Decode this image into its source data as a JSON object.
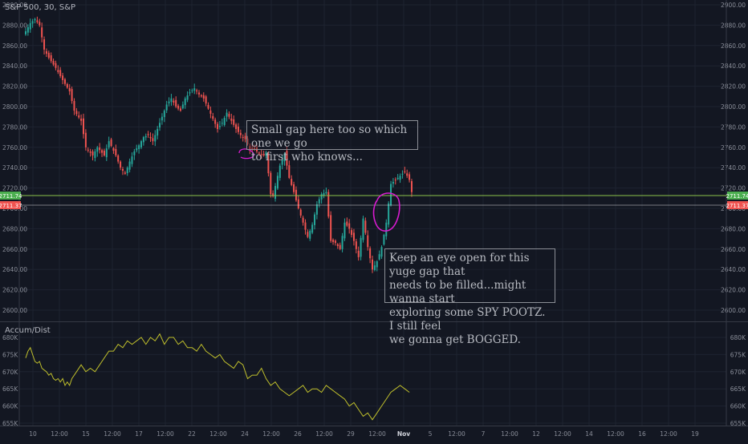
{
  "chart": {
    "title": "S&P 500, 30, S&P",
    "indicator_title": "Accum/Dist",
    "theme": {
      "background": "#131722",
      "grid": "#1e2330",
      "text": "#b2b5be",
      "up": "#26a69a",
      "down": "#ef5350",
      "ad_line": "#bfbf2c",
      "level_green": "#8bc34a",
      "annotation_circle": "#d81bd0"
    }
  },
  "annotations": [
    {
      "text": "Small gap here too so which one we go\nto first who knows..."
    },
    {
      "text": "Keep an eye open for this yuge gap that\nneeds to be filled...might wanna start\nexploring some SPY POOTZ. I still feel\nwe gonna get BOGGED."
    }
  ],
  "price_labels": [
    {
      "value": "2711.74",
      "color": "#4caf50"
    },
    {
      "value": "2711.37",
      "color": "#ef5350"
    }
  ],
  "chart_data": [
    {
      "type": "candlestick",
      "title": "S&P 500, 30, S&P",
      "y_ticks": [
        "2600.00",
        "2620.00",
        "2640.00",
        "2660.00",
        "2680.00",
        "2700.00",
        "2720.00",
        "2740.00",
        "2760.00",
        "2780.00",
        "2800.00",
        "2820.00",
        "2840.00",
        "2860.00",
        "2880.00",
        "2900.00"
      ],
      "ylim": [
        2590,
        2902
      ],
      "x_ticks": [
        "10",
        "12:00",
        "15",
        "12:00",
        "17",
        "12:00",
        "22",
        "12:00",
        "24",
        "12:00",
        "26",
        "12:00",
        "29",
        "12:00",
        "Nov",
        "5",
        "12:00",
        "7",
        "12:00",
        "12",
        "12:00",
        "14",
        "12:00",
        "16",
        "12:00",
        "19"
      ],
      "horizontal_levels": [
        2711.74,
        2711.37
      ],
      "price_path": [
        [
          0,
          2874
        ],
        [
          2,
          2882
        ],
        [
          4,
          2886
        ],
        [
          6,
          2880
        ],
        [
          7,
          2868
        ],
        [
          8,
          2856
        ],
        [
          10,
          2848
        ],
        [
          13,
          2838
        ],
        [
          16,
          2826
        ],
        [
          19,
          2815
        ],
        [
          21,
          2796
        ],
        [
          24,
          2786
        ],
        [
          26,
          2760
        ],
        [
          29,
          2752
        ],
        [
          31,
          2760
        ],
        [
          34,
          2752
        ],
        [
          36,
          2766
        ],
        [
          39,
          2752
        ],
        [
          41,
          2740
        ],
        [
          43,
          2734
        ],
        [
          45,
          2746
        ],
        [
          47,
          2756
        ],
        [
          49,
          2762
        ],
        [
          51,
          2770
        ],
        [
          53,
          2772
        ],
        [
          55,
          2766
        ],
        [
          57,
          2778
        ],
        [
          59,
          2790
        ],
        [
          61,
          2802
        ],
        [
          63,
          2808
        ],
        [
          65,
          2800
        ],
        [
          67,
          2796
        ],
        [
          69,
          2808
        ],
        [
          71,
          2814
        ],
        [
          73,
          2818
        ],
        [
          75,
          2812
        ],
        [
          77,
          2808
        ],
        [
          79,
          2798
        ],
        [
          81,
          2788
        ],
        [
          83,
          2778
        ],
        [
          85,
          2784
        ],
        [
          87,
          2794
        ],
        [
          89,
          2786
        ],
        [
          91,
          2778
        ],
        [
          93,
          2772
        ],
        [
          95,
          2768
        ],
        [
          97,
          2758
        ],
        [
          99,
          2758
        ],
        [
          101,
          2754
        ],
        [
          103,
          2752
        ],
        [
          104,
          2755
        ],
        [
          106,
          2714
        ],
        [
          107,
          2712
        ],
        [
          108,
          2722
        ],
        [
          110,
          2742
        ],
        [
          112,
          2754
        ],
        [
          114,
          2730
        ],
        [
          116,
          2716
        ],
        [
          118,
          2700
        ],
        [
          120,
          2686
        ],
        [
          122,
          2672
        ],
        [
          124,
          2684
        ],
        [
          126,
          2704
        ],
        [
          128,
          2714
        ],
        [
          130,
          2716
        ],
        [
          132,
          2668
        ],
        [
          134,
          2666
        ],
        [
          136,
          2660
        ],
        [
          138,
          2686
        ],
        [
          140,
          2680
        ],
        [
          142,
          2668
        ],
        [
          144,
          2652
        ],
        [
          146,
          2690
        ],
        [
          148,
          2662
        ],
        [
          150,
          2640
        ],
        [
          152,
          2648
        ],
        [
          154,
          2662
        ],
        [
          156,
          2686
        ],
        [
          158,
          2724
        ],
        [
          160,
          2728
        ],
        [
          162,
          2732
        ],
        [
          164,
          2736
        ],
        [
          166,
          2728
        ],
        [
          167,
          2716
        ]
      ]
    },
    {
      "type": "line",
      "title": "Accum/Dist",
      "y_ticks": [
        "655K",
        "660K",
        "665K",
        "670K",
        "675K",
        "680K"
      ],
      "ylim": [
        654,
        682
      ],
      "series": [
        {
          "name": "Accum/Dist",
          "values": [
            [
              0,
              674
            ],
            [
              1,
              676
            ],
            [
              2,
              677
            ],
            [
              3,
              675
            ],
            [
              4,
              673
            ],
            [
              5,
              672.5
            ],
            [
              6,
              673
            ],
            [
              7,
              671
            ],
            [
              8,
              670.5
            ],
            [
              9,
              670
            ],
            [
              10,
              669
            ],
            [
              11,
              669.5
            ],
            [
              12,
              668
            ],
            [
              13,
              667.5
            ],
            [
              14,
              668
            ],
            [
              15,
              667
            ],
            [
              16,
              668
            ],
            [
              17,
              666
            ],
            [
              18,
              667
            ],
            [
              19,
              666
            ],
            [
              20,
              668
            ],
            [
              22,
              670
            ],
            [
              24,
              672
            ],
            [
              26,
              670
            ],
            [
              28,
              671
            ],
            [
              30,
              670
            ],
            [
              32,
              672
            ],
            [
              34,
              674
            ],
            [
              36,
              676
            ],
            [
              38,
              676
            ],
            [
              40,
              678
            ],
            [
              42,
              677
            ],
            [
              44,
              679
            ],
            [
              46,
              678
            ],
            [
              48,
              679
            ],
            [
              50,
              680
            ],
            [
              52,
              678
            ],
            [
              54,
              680
            ],
            [
              56,
              679
            ],
            [
              58,
              681
            ],
            [
              60,
              678
            ],
            [
              62,
              680
            ],
            [
              64,
              680
            ],
            [
              66,
              678
            ],
            [
              68,
              679
            ],
            [
              70,
              677
            ],
            [
              72,
              677
            ],
            [
              74,
              676
            ],
            [
              76,
              678
            ],
            [
              78,
              676
            ],
            [
              80,
              675
            ],
            [
              82,
              674
            ],
            [
              84,
              675
            ],
            [
              86,
              673
            ],
            [
              88,
              672
            ],
            [
              90,
              671
            ],
            [
              92,
              673
            ],
            [
              94,
              672
            ],
            [
              96,
              668
            ],
            [
              98,
              669
            ],
            [
              100,
              669
            ],
            [
              102,
              671
            ],
            [
              104,
              668
            ],
            [
              106,
              666
            ],
            [
              108,
              667
            ],
            [
              110,
              665
            ],
            [
              112,
              664
            ],
            [
              114,
              663
            ],
            [
              116,
              664
            ],
            [
              118,
              665
            ],
            [
              120,
              666
            ],
            [
              122,
              664
            ],
            [
              124,
              665
            ],
            [
              126,
              665
            ],
            [
              128,
              664
            ],
            [
              130,
              666
            ],
            [
              132,
              665
            ],
            [
              134,
              664
            ],
            [
              136,
              663
            ],
            [
              138,
              662
            ],
            [
              140,
              660
            ],
            [
              142,
              661
            ],
            [
              144,
              659
            ],
            [
              146,
              657
            ],
            [
              148,
              658
            ],
            [
              150,
              656
            ],
            [
              152,
              658
            ],
            [
              154,
              660
            ],
            [
              156,
              662
            ],
            [
              158,
              664
            ],
            [
              160,
              665
            ],
            [
              162,
              666
            ],
            [
              164,
              665
            ],
            [
              166,
              664
            ]
          ]
        }
      ]
    }
  ]
}
